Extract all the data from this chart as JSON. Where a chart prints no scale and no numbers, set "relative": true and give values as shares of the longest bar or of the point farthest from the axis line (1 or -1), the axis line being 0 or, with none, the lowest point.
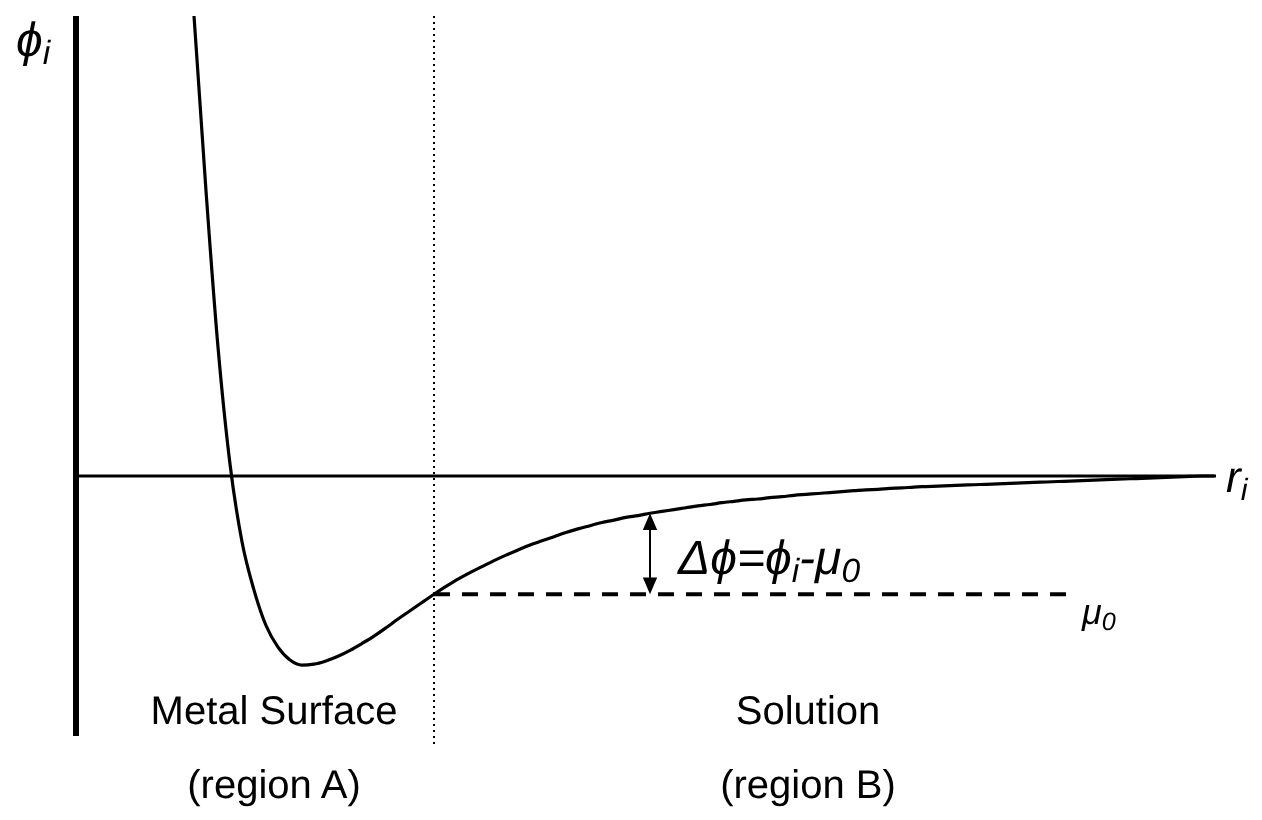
{
  "chart_data": {
    "type": "line",
    "relative": true,
    "ylabel": "ϕ$_{i}$",
    "xlabel": "r$_{i}$",
    "line_style": "solid",
    "categories": [
      null,
      null,
      null,
      null,
      null,
      null,
      null,
      null,
      null,
      null,
      null,
      null,
      null,
      null,
      null,
      null,
      null,
      null,
      null,
      null,
      null,
      null,
      null,
      null,
      null,
      null,
      null,
      null,
      null,
      null,
      null,
      null,
      null,
      null,
      null,
      null,
      null,
      null,
      null,
      null,
      null,
      null,
      null,
      null,
      null,
      null,
      null,
      null,
      null,
      null,
      null,
      null,
      null,
      null,
      null,
      null,
      null,
      null,
      null,
      null,
      null,
      null,
      null,
      null,
      null,
      null,
      null,
      null,
      null,
      null,
      null,
      null,
      null,
      null,
      null,
      null,
      null,
      null,
      null,
      null,
      null,
      null,
      null,
      null,
      null,
      null
    ],
    "series": [
      {
        "color": "#000000",
        "values": [
          1.0,
          0.62,
          0.28,
          0.026,
          -0.143,
          -0.248,
          -0.325,
          -0.372,
          -0.4,
          -0.411,
          -0.409,
          -0.402,
          -0.392,
          -0.379,
          -0.364,
          -0.348,
          -0.33,
          -0.311,
          -0.293,
          -0.275,
          -0.257,
          -0.24,
          -0.224,
          -0.21,
          -0.197,
          -0.184,
          -0.172,
          -0.161,
          -0.15,
          -0.141,
          -0.132,
          -0.123,
          -0.115,
          -0.108,
          -0.101,
          -0.096,
          -0.09,
          -0.086,
          -0.081,
          -0.077,
          -0.073,
          -0.069,
          -0.065,
          -0.062,
          -0.058,
          -0.055,
          -0.052,
          -0.05,
          -0.047,
          -0.045,
          -0.042,
          -0.04,
          -0.038,
          -0.036,
          -0.034,
          -0.032,
          -0.03,
          -0.029,
          -0.027,
          -0.026,
          -0.024,
          -0.023,
          -0.022,
          -0.021,
          -0.02,
          -0.019,
          -0.018,
          -0.017,
          -0.016,
          -0.015,
          -0.014,
          -0.013,
          -0.012,
          -0.011,
          -0.01,
          -0.009,
          -0.008,
          -0.007,
          -0.006,
          -0.005,
          -0.004,
          -0.003,
          -0.002,
          -0.001,
          0,
          0
        ]
      },
      {
        "name": "μ$_{0}$",
        "color": "#000000",
        "line_style": "dashed",
        "values": [
          null,
          null,
          null,
          null,
          null,
          null,
          null,
          null,
          null,
          null,
          null,
          null,
          null,
          null,
          null,
          null,
          null,
          null,
          null,
          null,
          -0.257,
          -0.257,
          -0.257,
          -0.257,
          -0.257,
          -0.257,
          -0.257,
          -0.257,
          -0.257,
          -0.257,
          -0.257,
          -0.257,
          -0.257,
          -0.257,
          -0.257,
          -0.257,
          -0.257,
          -0.257,
          -0.257,
          -0.257,
          -0.257,
          -0.257,
          -0.257,
          -0.257,
          -0.257,
          -0.257,
          -0.257,
          -0.257,
          -0.257,
          -0.257,
          -0.257,
          -0.257,
          -0.257,
          -0.257,
          -0.257,
          -0.257,
          -0.257,
          -0.257,
          -0.257,
          -0.257,
          -0.257,
          -0.257,
          -0.257,
          -0.257,
          -0.257,
          -0.257,
          -0.257,
          -0.257,
          -0.257,
          -0.257,
          -0.257,
          -0.257,
          -0.257,
          -0.257,
          null,
          null,
          null,
          null,
          null,
          null,
          null,
          null,
          null,
          null,
          null,
          null
        ]
      }
    ],
    "annotations": [
      "Δϕ=ϕ$_{i}$-μ$_{0}$",
      "Metal Surface",
      "Solution",
      "(region A)",
      "(region B)"
    ]
  }
}
